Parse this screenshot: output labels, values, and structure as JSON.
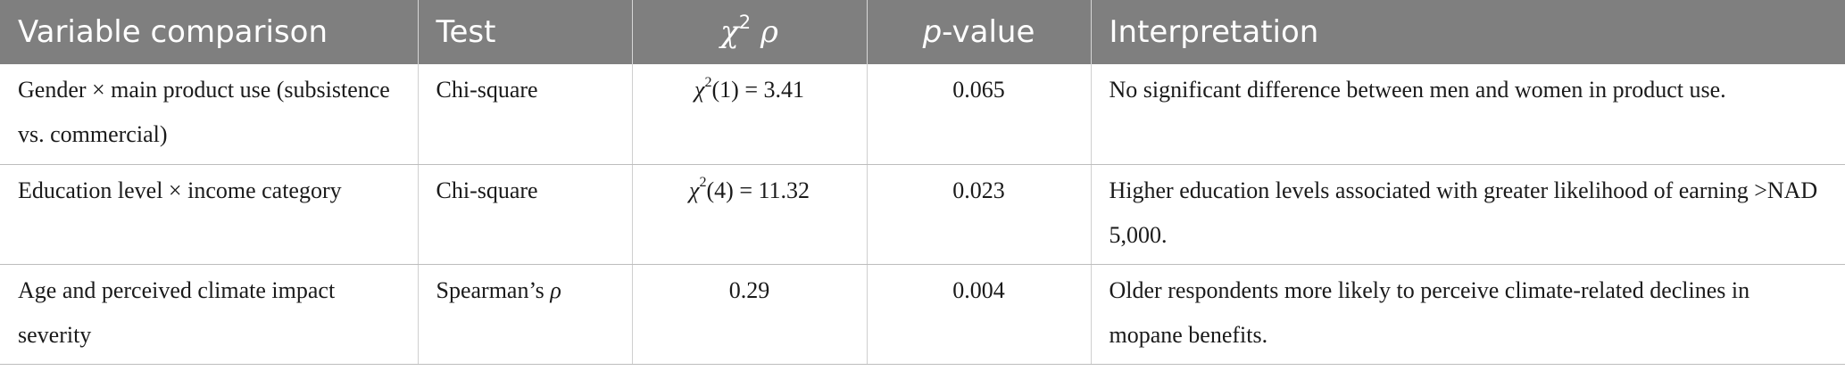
{
  "table": {
    "headers": {
      "variable_comparison": "Variable comparison",
      "test": "Test",
      "stat_chi": "χ",
      "stat_sq": "2",
      "stat_rho": "ρ",
      "p_italic": "p",
      "p_rest": "-value",
      "interpretation": "Interpretation"
    },
    "rows": [
      {
        "variable": "Gender × main product use (subsistence vs. commercial)",
        "test": "Chi-square",
        "test_symbol": "",
        "stat_chi": "χ",
        "stat_sq": "2",
        "stat_rest": "(1) = 3.41",
        "p_value": "0.065",
        "interpretation": "No significant difference between men and women in product use."
      },
      {
        "variable": "Education level × income category",
        "test": "Chi-square",
        "test_symbol": "",
        "stat_chi": "χ",
        "stat_sq": "2",
        "stat_rest": "(4) = 11.32",
        "p_value": "0.023",
        "interpretation": "Higher education levels associated with greater likelihood of earning >NAD 5,000."
      },
      {
        "variable": "Age and perceived climate impact severity",
        "test": "Spearman’s ",
        "test_symbol": "ρ",
        "stat_chi": "",
        "stat_sq": "",
        "stat_rest": "0.29",
        "p_value": "0.004",
        "interpretation": "Older respondents more likely to perceive climate-related declines in mopane benefits."
      }
    ]
  }
}
